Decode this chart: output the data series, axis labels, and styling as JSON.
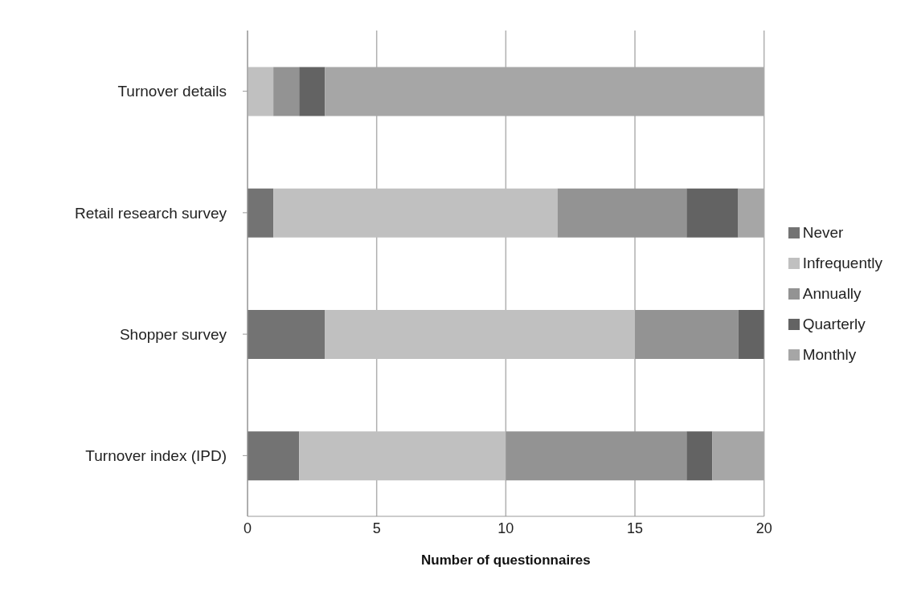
{
  "chart_data": {
    "type": "bar",
    "orientation": "horizontal",
    "stacked": true,
    "xlabel": "Number of questionnaires",
    "categories": [
      "Turnover details",
      "Retail research survey",
      "Shopper survey",
      "Turnover index (IPD)"
    ],
    "series": [
      {
        "name": "Never",
        "color": "#737373",
        "values": [
          0,
          1,
          3,
          2
        ]
      },
      {
        "name": "Infrequently",
        "color": "#c0c0c0",
        "values": [
          1,
          11,
          12,
          8
        ]
      },
      {
        "name": "Annually",
        "color": "#939393",
        "values": [
          1,
          5,
          4,
          7
        ]
      },
      {
        "name": "Quarterly",
        "color": "#636363",
        "values": [
          1,
          2,
          1,
          1
        ]
      },
      {
        "name": "Monthly",
        "color": "#a6a6a6",
        "values": [
          17,
          1,
          0,
          2
        ]
      }
    ],
    "xlim": [
      0,
      20
    ],
    "xticks": [
      0,
      5,
      10,
      15,
      20
    ],
    "grid": "x",
    "legend": "right"
  }
}
